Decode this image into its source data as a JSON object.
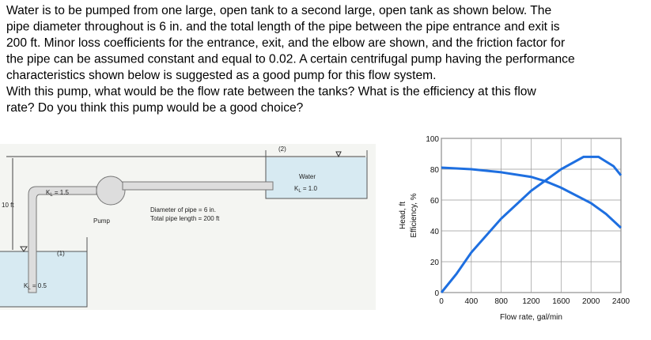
{
  "problem": {
    "lines": [
      "Water is to be pumped from one large, open tank to a second large, open tank as shown below. The",
      "pipe diameter throughout is 6 in. and the total length of the pipe between the pipe entrance and exit is",
      "200 ft. Minor loss coefficients for the entrance, exit, and the elbow are shown, and the friction factor for",
      "the pipe can be assumed constant and equal to 0.02. A certain centrifugal pump having the performance",
      "characteristics shown below is suggested as a good pump for this flow system.",
      "With this pump, what would be the flow rate between the  tanks? What is the efficiency at this flow",
      "rate? Do you think this pump would be a good choice?"
    ]
  },
  "diagram": {
    "point_2": "(2)",
    "water": "Water",
    "exit_k": {
      "symbol": "K",
      "sub": "L",
      "rest": " = 1.0"
    },
    "elbow_k": {
      "symbol": "K",
      "sub": "L",
      "rest": " = 1.5"
    },
    "pump": "Pump",
    "diameter": "Diameter of pipe = 6 in.",
    "length": "Total pipe length = 200 ft",
    "height": "10 ft",
    "point_1": "(1)",
    "entrance_k": {
      "symbol": "K",
      "sub": "L",
      "rest": " = 0.5"
    }
  },
  "chart_data": {
    "type": "line",
    "x_label": "Flow rate, gal/min",
    "y_labels": [
      "Head, ft",
      "Efficiency, %"
    ],
    "xlim": [
      0,
      2400
    ],
    "ylim": [
      0,
      100
    ],
    "xticks": [
      0,
      400,
      800,
      1200,
      1600,
      2000,
      2400
    ],
    "yticks": [
      0,
      20,
      40,
      60,
      80,
      100
    ],
    "grid": true,
    "series": [
      {
        "color": "#1e6fe0",
        "x": [
          0,
          400,
          800,
          1200,
          1400,
          1600,
          2000,
          2200,
          2400
        ],
        "values": [
          81,
          80,
          78,
          75,
          72,
          68,
          58,
          51,
          42
        ]
      },
      {
        "color": "#1e6fe0",
        "x": [
          0,
          200,
          400,
          800,
          1200,
          1600,
          1900,
          2100,
          2300,
          2400
        ],
        "values": [
          0,
          12,
          26,
          48,
          66,
          80,
          88,
          88,
          82,
          76
        ]
      }
    ]
  }
}
